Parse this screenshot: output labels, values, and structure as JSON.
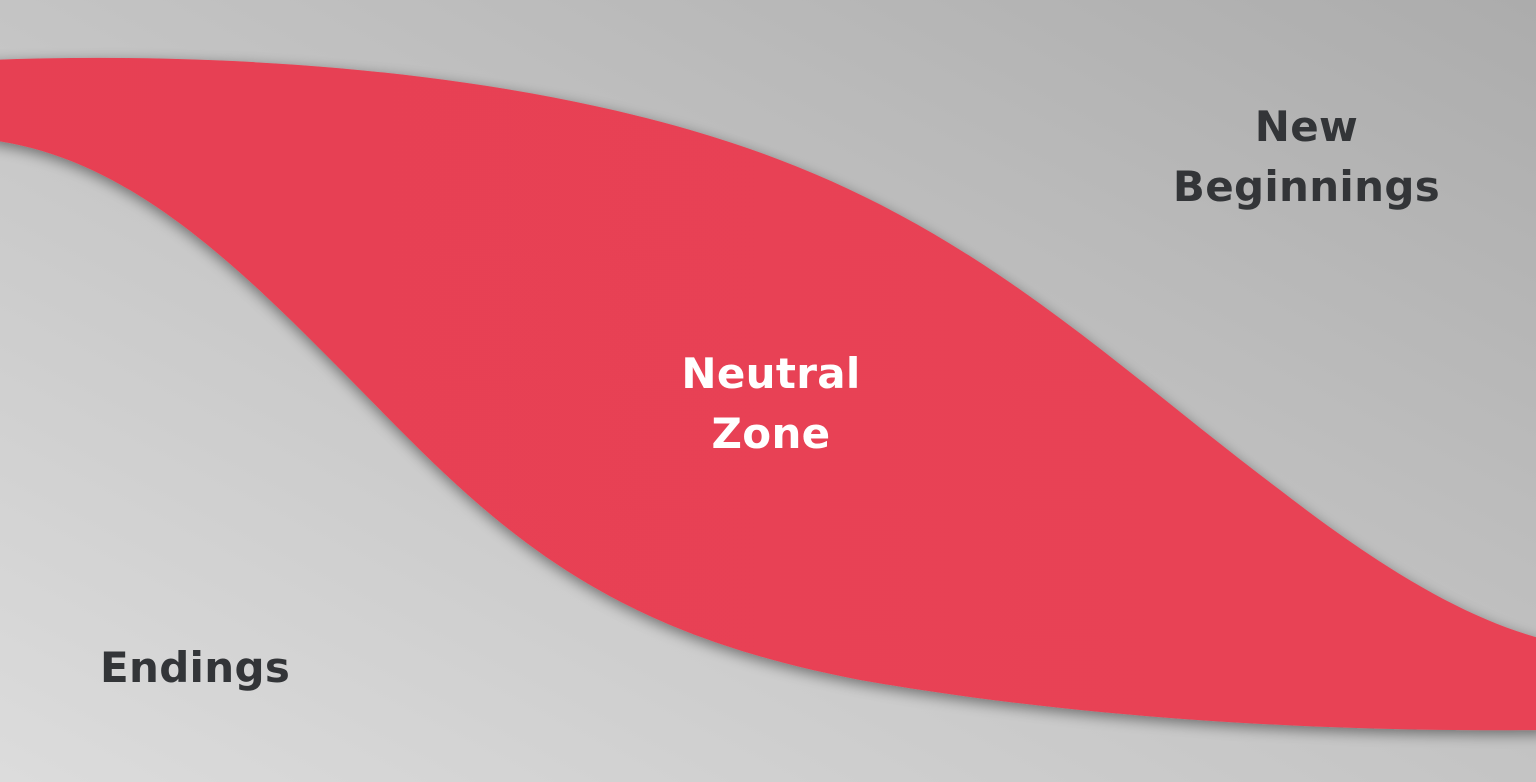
{
  "labels": {
    "new_beginnings": [
      "New",
      "Beginnings"
    ],
    "neutral_zone": [
      "Neutral",
      "Zone"
    ],
    "endings": "Endings"
  },
  "colors": {
    "background_light": "#dcdcdc",
    "background_dark": "#aeaeae",
    "band": "#e74153",
    "text_dark": "#333538",
    "text_light": "#ffffff"
  }
}
